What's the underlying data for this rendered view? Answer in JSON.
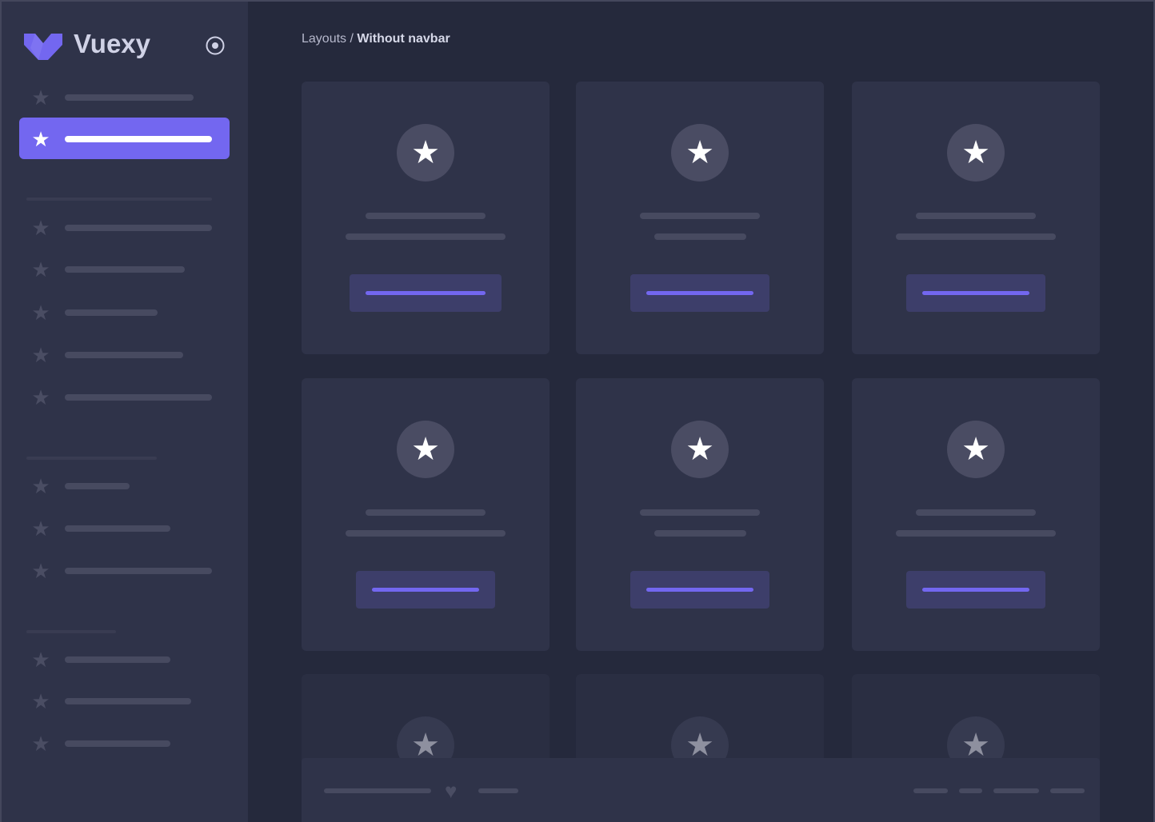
{
  "brand": {
    "name": "Vuexy",
    "logo_color": "#7367f0",
    "pin_icon": "radio-target-icon"
  },
  "breadcrumb": {
    "parent": "Layouts",
    "separator": " / ",
    "current": "Without navbar"
  },
  "icons": {
    "nav": "star-icon",
    "card": "star-icon",
    "footer": "heart-icon"
  },
  "colors": {
    "accent": "#7367f0",
    "sidebar": "#2f3349",
    "background": "#25293c",
    "card": "#2f3349"
  }
}
